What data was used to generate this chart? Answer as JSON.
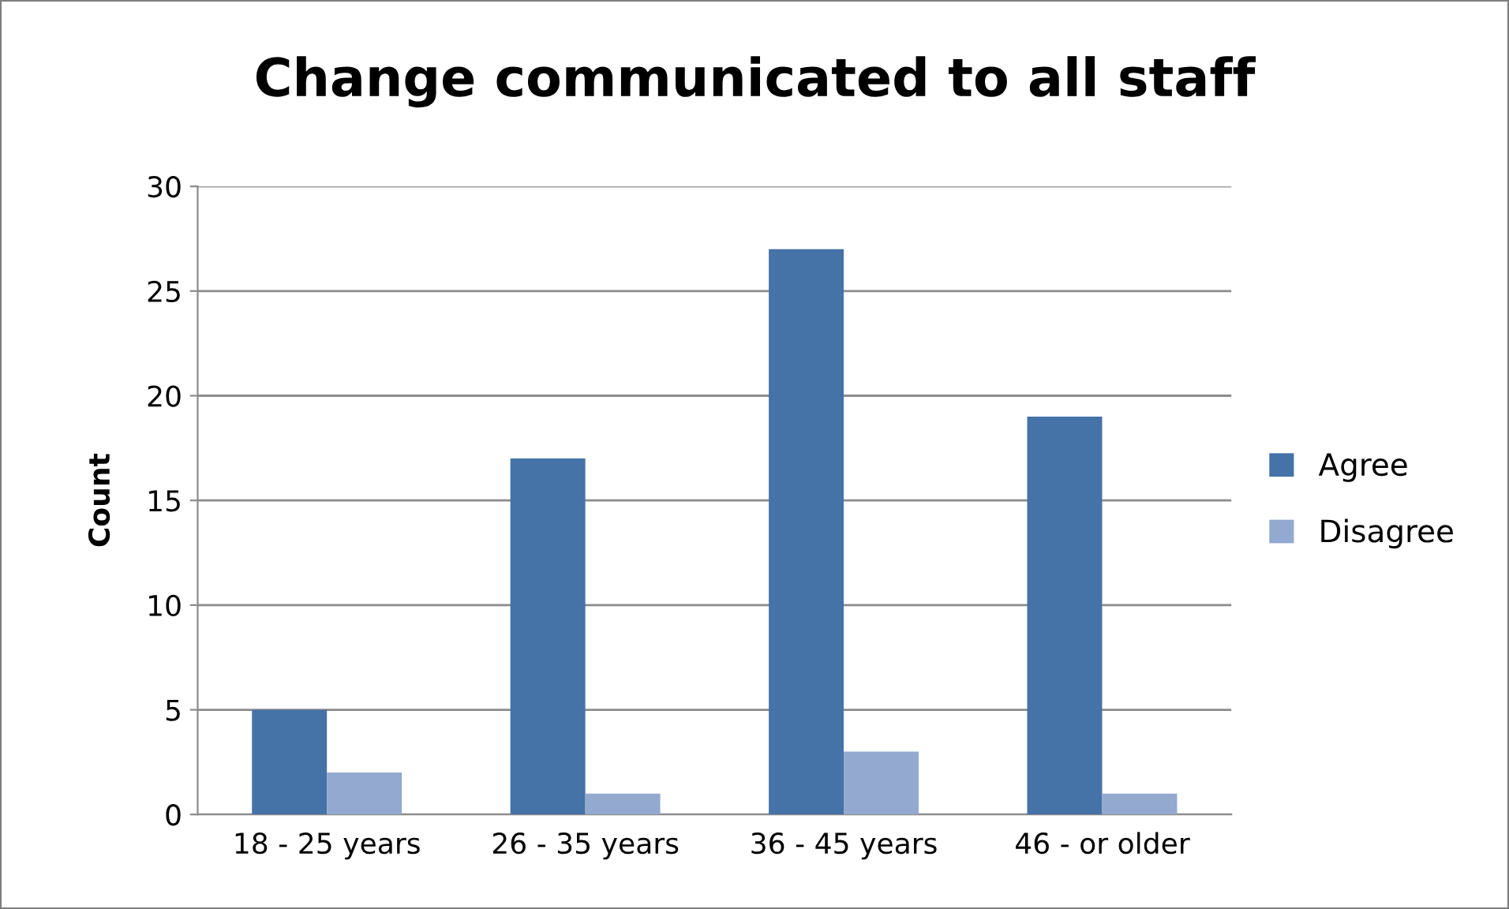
{
  "chart_data": {
    "type": "bar",
    "title": "Change communicated to all staff",
    "ylabel": "Count",
    "categories": [
      "18 - 25 years",
      "26 - 35 years",
      "36 - 45 years",
      "46 - or older"
    ],
    "series": [
      {
        "name": "Agree",
        "color": "#4572a7",
        "values": [
          5,
          17,
          27,
          19
        ]
      },
      {
        "name": "Disagree",
        "color": "#93a9cf",
        "values": [
          2,
          1,
          3,
          1
        ]
      }
    ],
    "ylim": [
      0,
      30
    ],
    "yticks": [
      0,
      5,
      10,
      15,
      20,
      25,
      30
    ],
    "grid": "y",
    "legend": "right"
  }
}
